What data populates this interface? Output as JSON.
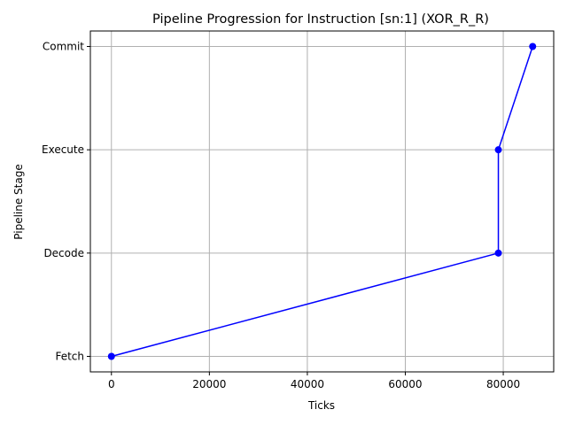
{
  "chart_data": {
    "type": "line",
    "title": "Pipeline Progression for Instruction [sn:1] (XOR_R_R)",
    "xlabel": "Ticks",
    "ylabel": "Pipeline Stage",
    "x": [
      0,
      79000,
      79000,
      86000
    ],
    "y": [
      "Fetch",
      "Decode",
      "Execute",
      "Commit"
    ],
    "categories_y": [
      "Fetch",
      "Decode",
      "Execute",
      "Commit"
    ],
    "xlim": [
      -4300,
      90300
    ],
    "xticks": [
      0,
      20000,
      40000,
      60000,
      80000
    ],
    "grid": true,
    "line_color": "#0000ff",
    "marker": "circle"
  }
}
